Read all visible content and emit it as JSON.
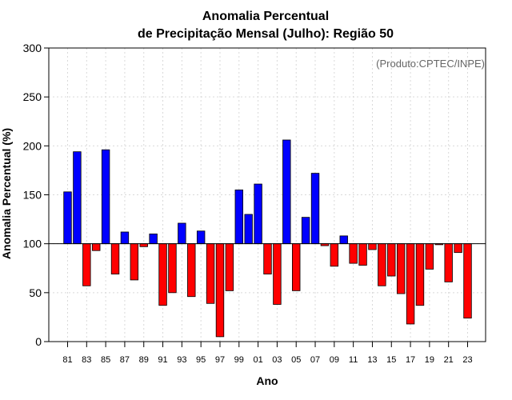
{
  "chart_data": {
    "type": "bar",
    "title_line1": "Anomalia Percentual",
    "title_line2": "de Precipitação Mensal (Julho): Região 50",
    "xlabel": "Ano",
    "ylabel": "Anomalia Percentual (%)",
    "annotation": "(Produto:CPTEC/INPE)",
    "ylim": [
      0,
      300
    ],
    "yticks": [
      0,
      50,
      100,
      150,
      200,
      250,
      300
    ],
    "baseline": 100,
    "colors": {
      "above": "#0000ff",
      "below": "#ff0000",
      "outline": "#000000"
    },
    "categories": [
      "81",
      "82",
      "83",
      "84",
      "85",
      "86",
      "87",
      "88",
      "89",
      "90",
      "91",
      "92",
      "93",
      "94",
      "95",
      "96",
      "97",
      "98",
      "99",
      "00",
      "01",
      "02",
      "03",
      "04",
      "05",
      "06",
      "07",
      "08",
      "09",
      "10",
      "11",
      "12",
      "13",
      "14",
      "15",
      "16",
      "17",
      "18",
      "19",
      "20",
      "21",
      "22",
      "23"
    ],
    "xtick_labels": [
      "81",
      "83",
      "85",
      "87",
      "89",
      "91",
      "93",
      "95",
      "97",
      "99",
      "01",
      "03",
      "05",
      "07",
      "09",
      "11",
      "13",
      "15",
      "17",
      "19",
      "21",
      "23"
    ],
    "values": [
      153,
      194,
      57,
      93,
      196,
      69,
      112,
      63,
      97,
      110,
      37,
      50,
      121,
      46,
      113,
      39,
      5,
      52,
      155,
      130,
      161,
      69,
      38,
      206,
      52,
      127,
      172,
      98,
      77,
      108,
      80,
      78,
      94,
      57,
      67,
      49,
      18,
      37,
      74,
      99,
      61,
      91,
      24
    ]
  }
}
